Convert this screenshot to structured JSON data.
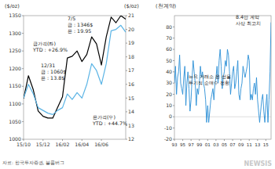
{
  "chart_data": [
    {
      "type": "line",
      "y_label": "($/oz)",
      "y2_label": "($/oz)",
      "categories": [
        "15/10",
        null,
        null,
        null,
        "15/12",
        null,
        null,
        null,
        "16/02",
        null,
        null,
        null,
        "16/04",
        null,
        null,
        null,
        "16/06",
        null,
        null,
        null,
        null,
        null
      ],
      "series": [
        {
          "name": "금가격(좌)",
          "color": "#000000",
          "values": [
            1115,
            1180,
            1140,
            1080,
            1065,
            1060,
            1060,
            1090,
            1120,
            1230,
            1235,
            1250,
            1220,
            1240,
            1290,
            1270,
            1210,
            1290,
            1346,
            1330,
            1350,
            1340
          ]
        },
        {
          "name": "은가격(우)",
          "color": "#5bb4e5",
          "axis": "y2",
          "values": [
            15.0,
            16.0,
            15.3,
            14.3,
            14.1,
            13.9,
            13.8,
            14.1,
            14.3,
            15.3,
            14.9,
            15.4,
            15.0,
            16.0,
            17.5,
            17.0,
            16.0,
            17.5,
            19.9,
            20.0,
            20.3,
            19.8
          ]
        }
      ],
      "ylim": [
        1000,
        1350
      ],
      "yticks": [
        1000,
        1050,
        1100,
        1150,
        1200,
        1250,
        1300,
        1350
      ],
      "y2lim": [
        12,
        21
      ],
      "y2ticks": [
        12,
        13,
        14,
        15,
        16,
        17,
        18,
        19,
        20,
        21
      ],
      "grid": false,
      "annotations": [
        [
          "금가격(좌)",
          "YTD : +26.9%"
        ],
        [
          "12/31",
          "금 : 1060$",
          "은 : 13.8$"
        ],
        [
          "7/5",
          "금 : 1346$",
          "은 : 19.95"
        ],
        [
          "은가격(우)",
          "YTD : +44.7%"
        ]
      ]
    },
    {
      "type": "line",
      "y_label": "(천계약)",
      "categories": [
        "93",
        null,
        null,
        null,
        null,
        null,
        null,
        null,
        "95",
        null,
        null,
        null,
        null,
        null,
        null,
        null,
        "97",
        null,
        null,
        null,
        null,
        null,
        null,
        null,
        "99",
        null,
        null,
        null,
        null,
        null,
        null,
        null,
        "01",
        null,
        null,
        null,
        null,
        null,
        null,
        null,
        "03",
        null,
        null,
        null,
        null,
        null,
        null,
        null,
        "05",
        null,
        null,
        null,
        null,
        null,
        null,
        null,
        "07",
        null,
        null,
        null,
        null,
        null,
        null,
        null,
        "09",
        null,
        null,
        null,
        null,
        null,
        null,
        null,
        "11",
        null,
        null,
        null,
        null,
        null,
        null,
        null,
        "13",
        null,
        null,
        null,
        null,
        null,
        null,
        null,
        "15",
        null,
        null,
        null,
        null,
        null
      ],
      "series": [
        {
          "name": "뉴욕 거래소 은 선물 투기적 순매수",
          "color": "#2a8fd6",
          "values": [
            30,
            45,
            20,
            35,
            40,
            55,
            30,
            25,
            20,
            35,
            45,
            10,
            30,
            40,
            25,
            5,
            15,
            35,
            50,
            40,
            30,
            10,
            25,
            20,
            30,
            45,
            35,
            40,
            30,
            25,
            15,
            -5,
            10,
            -5,
            5,
            15,
            20,
            25,
            15,
            30,
            35,
            45,
            30,
            50,
            60,
            45,
            25,
            35,
            40,
            50,
            45,
            60,
            55,
            40,
            20,
            30,
            40,
            45,
            25,
            30,
            40,
            50,
            20,
            15,
            25,
            30,
            45,
            40,
            35,
            40,
            45,
            55,
            50,
            15,
            20,
            15,
            25,
            30,
            20,
            35,
            15,
            5,
            -5,
            5,
            15,
            20,
            5,
            -5,
            10,
            20,
            -5,
            15,
            40,
            84
          ]
        }
      ],
      "ylim": [
        -20,
        90
      ],
      "yticks": [
        -20,
        -10,
        0,
        10,
        20,
        30,
        40,
        50,
        60,
        70,
        80
      ],
      "grid": false,
      "annotations": [
        [
          "뉴욕 거래소 은 선물",
          "투기적 순매수 전환"
        ],
        [
          "8.4만 계약",
          "사상 최고치"
        ]
      ]
    }
  ],
  "source": "자료: 한국투자증권, 블룸버그",
  "watermark": "NEWSIS"
}
